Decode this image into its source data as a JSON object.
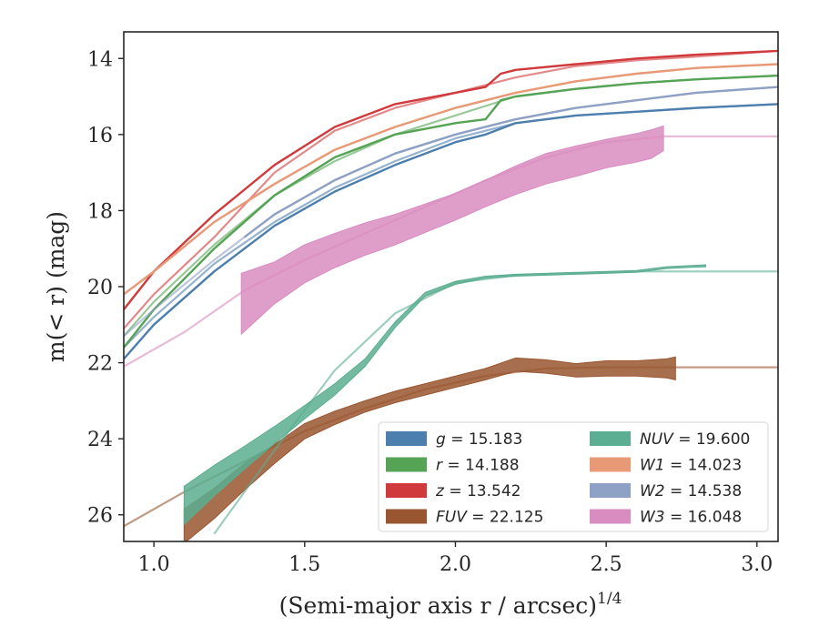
{
  "chart_data": {
    "type": "line",
    "xlabel": "(Semi-major axis r / arcsec)",
    "xlabel_exponent": "1/4",
    "ylabel": "m(< r) (mag)",
    "xlim": [
      0.9,
      3.07
    ],
    "ylim": [
      26.7,
      13.3
    ],
    "y_inverted": true,
    "x_ticks": [
      1.0,
      1.5,
      2.0,
      2.5,
      3.0
    ],
    "x_tick_labels": [
      "1.0",
      "1.5",
      "2.0",
      "2.5",
      "3.0"
    ],
    "y_ticks": [
      14,
      16,
      18,
      20,
      22,
      24,
      26
    ],
    "y_tick_labels": [
      "14",
      "16",
      "18",
      "20",
      "22",
      "24",
      "26"
    ],
    "grid": false,
    "legend_position": "lower-right",
    "series": [
      {
        "name": "g = 15.183",
        "band": "g",
        "total": "15.183",
        "color": "#4c7fad",
        "model": {
          "x": [
            0.9,
            1.0,
            1.2,
            1.4,
            1.6,
            1.8,
            2.0,
            2.2,
            2.4,
            2.6,
            2.8,
            3.07
          ],
          "y": [
            21.6,
            20.8,
            19.4,
            18.3,
            17.4,
            16.7,
            16.1,
            15.7,
            15.5,
            15.4,
            15.3,
            15.2
          ]
        },
        "data": {
          "x": [
            0.9,
            1.0,
            1.2,
            1.4,
            1.6,
            1.8,
            2.0,
            2.1,
            2.2,
            2.4,
            2.6,
            2.8,
            3.07
          ],
          "y": [
            21.9,
            21.0,
            19.6,
            18.4,
            17.5,
            16.8,
            16.2,
            16.0,
            15.7,
            15.5,
            15.4,
            15.3,
            15.2
          ],
          "width": [
            0,
            0,
            0,
            0,
            0,
            0,
            0,
            0,
            0,
            0,
            0,
            0,
            0
          ]
        }
      },
      {
        "name": "r = 14.188",
        "band": "r",
        "total": "14.188",
        "color": "#55a355",
        "model": {
          "x": [
            0.9,
            1.0,
            1.2,
            1.4,
            1.6,
            1.8,
            2.0,
            2.2,
            2.4,
            2.6,
            2.8,
            3.07
          ],
          "y": [
            21.3,
            20.4,
            18.9,
            17.6,
            16.7,
            16.0,
            15.5,
            15.0,
            14.8,
            14.65,
            14.55,
            14.45
          ]
        },
        "data": {
          "x": [
            0.9,
            1.0,
            1.2,
            1.4,
            1.6,
            1.8,
            2.0,
            2.1,
            2.15,
            2.2,
            2.4,
            2.6,
            2.8,
            3.07
          ],
          "y": [
            21.6,
            20.6,
            19.0,
            17.6,
            16.6,
            16.0,
            15.7,
            15.6,
            15.1,
            15.0,
            14.8,
            14.65,
            14.55,
            14.45
          ],
          "width": [
            0,
            0,
            0,
            0,
            0,
            0,
            0,
            0,
            0,
            0,
            0,
            0,
            0,
            0
          ]
        }
      },
      {
        "name": "z = 13.542",
        "band": "z",
        "total": "13.542",
        "color": "#d03a3c",
        "model": {
          "x": [
            0.9,
            1.0,
            1.2,
            1.4,
            1.6,
            1.8,
            2.0,
            2.2,
            2.4,
            2.6,
            2.8,
            3.07
          ],
          "y": [
            21.1,
            20.2,
            18.7,
            17.0,
            15.9,
            15.3,
            14.9,
            14.5,
            14.2,
            14.05,
            13.95,
            13.8
          ]
        },
        "data": {
          "x": [
            0.9,
            1.0,
            1.2,
            1.4,
            1.6,
            1.8,
            2.0,
            2.1,
            2.15,
            2.2,
            2.4,
            2.6,
            2.8,
            3.07
          ],
          "y": [
            20.6,
            19.6,
            18.1,
            16.8,
            15.8,
            15.2,
            14.9,
            14.75,
            14.4,
            14.3,
            14.15,
            14.0,
            13.9,
            13.8
          ],
          "width": [
            0,
            0,
            0,
            0,
            0,
            0,
            0,
            0,
            0,
            0,
            0,
            0,
            0,
            0
          ]
        }
      },
      {
        "name": "FUV = 22.125",
        "band": "FUV",
        "total": "22.125",
        "color": "#995630",
        "model": {
          "x": [
            0.9,
            1.1,
            1.3,
            1.5,
            1.7,
            1.9,
            2.1,
            2.3,
            2.5,
            2.7,
            3.07
          ],
          "y": [
            26.3,
            25.4,
            24.6,
            23.8,
            23.2,
            22.7,
            22.35,
            22.15,
            22.12,
            22.12,
            22.12
          ]
        },
        "data": {
          "x": [
            1.1,
            1.2,
            1.3,
            1.4,
            1.5,
            1.6,
            1.7,
            1.8,
            1.9,
            2.0,
            2.1,
            2.2,
            2.3,
            2.4,
            2.5,
            2.6,
            2.7,
            2.73
          ],
          "y": [
            26.3,
            25.7,
            25.0,
            24.4,
            23.8,
            23.45,
            23.15,
            22.9,
            22.7,
            22.5,
            22.3,
            22.05,
            22.1,
            22.2,
            22.15,
            22.15,
            22.15,
            22.15
          ],
          "width": [
            0.9,
            0.8,
            0.7,
            0.5,
            0.4,
            0.35,
            0.3,
            0.3,
            0.3,
            0.3,
            0.3,
            0.35,
            0.35,
            0.35,
            0.4,
            0.4,
            0.5,
            0.6
          ]
        }
      },
      {
        "name": "NUV = 19.600",
        "band": "NUV",
        "total": "19.600",
        "color": "#5bae91",
        "model": {
          "x": [
            1.2,
            1.4,
            1.6,
            1.8,
            2.0,
            2.2,
            2.4,
            2.6,
            2.8,
            3.07
          ],
          "y": [
            26.5,
            24.3,
            22.2,
            20.7,
            19.9,
            19.7,
            19.65,
            19.6,
            19.6,
            19.6
          ]
        },
        "data": {
          "x": [
            1.1,
            1.2,
            1.3,
            1.4,
            1.5,
            1.6,
            1.7,
            1.8,
            1.9,
            2.0,
            2.1,
            2.2,
            2.4,
            2.6,
            2.7,
            2.83
          ],
          "y": [
            25.75,
            25.1,
            24.5,
            23.9,
            23.3,
            22.7,
            22.0,
            21.0,
            20.2,
            19.9,
            19.75,
            19.7,
            19.65,
            19.6,
            19.5,
            19.45
          ],
          "width": [
            1.0,
            0.8,
            0.6,
            0.45,
            0.35,
            0.3,
            0.2,
            0.15,
            0.1,
            0.08,
            0.05,
            0.05,
            0.05,
            0.05,
            0.05,
            0.05
          ]
        }
      },
      {
        "name": "W1 = 14.023",
        "band": "W1",
        "total": "14.023",
        "color": "#e89a77",
        "model": {
          "x": [
            0.9,
            1.0,
            1.2,
            1.4,
            1.6,
            1.8,
            2.0,
            2.2,
            2.4,
            2.6,
            2.8,
            3.07
          ],
          "y": [
            20.2,
            19.6,
            18.3,
            17.3,
            16.4,
            15.8,
            15.3,
            14.9,
            14.6,
            14.4,
            14.25,
            14.15
          ]
        },
        "data": {
          "x": [
            0.9,
            1.0,
            1.2,
            1.4,
            1.6,
            1.8,
            2.0,
            2.2,
            2.4,
            2.6,
            2.8,
            3.07
          ],
          "y": [
            20.2,
            19.6,
            18.3,
            17.3,
            16.4,
            15.8,
            15.3,
            14.9,
            14.6,
            14.4,
            14.25,
            14.15
          ],
          "width": [
            0,
            0,
            0,
            0,
            0,
            0,
            0,
            0,
            0,
            0,
            0,
            0
          ]
        }
      },
      {
        "name": "W2 = 14.538",
        "band": "W2",
        "total": "14.538",
        "color": "#8ea0c3",
        "model": {
          "x": [
            0.9,
            1.0,
            1.2,
            1.4,
            1.6,
            1.8,
            2.0,
            2.2,
            2.4,
            2.6,
            2.8,
            3.07
          ],
          "y": [
            21.3,
            20.6,
            19.3,
            18.1,
            17.2,
            16.5,
            16.0,
            15.6,
            15.3,
            15.1,
            14.9,
            14.75
          ]
        },
        "data": {
          "x": [
            1.3,
            1.4,
            1.6,
            1.8,
            2.0,
            2.2,
            2.4,
            2.6,
            2.8,
            3.07
          ],
          "y": [
            18.7,
            18.1,
            17.2,
            16.5,
            16.0,
            15.6,
            15.3,
            15.1,
            14.9,
            14.75
          ],
          "width": [
            0,
            0,
            0,
            0,
            0,
            0,
            0,
            0,
            0,
            0
          ]
        }
      },
      {
        "name": "W3 = 16.048",
        "band": "W3",
        "total": "16.048",
        "color": "#d98cc0",
        "model": {
          "x": [
            0.9,
            1.1,
            1.3,
            1.5,
            1.7,
            1.9,
            2.1,
            2.3,
            2.5,
            2.7,
            2.9,
            3.07
          ],
          "y": [
            22.1,
            21.2,
            20.1,
            19.3,
            18.6,
            17.9,
            17.2,
            16.6,
            16.2,
            16.05,
            16.05,
            16.05
          ]
        },
        "data": {
          "x": [
            1.29,
            1.4,
            1.5,
            1.6,
            1.7,
            1.8,
            1.9,
            2.0,
            2.1,
            2.2,
            2.3,
            2.4,
            2.5,
            2.6,
            2.65,
            2.69
          ],
          "y": [
            20.45,
            19.9,
            19.4,
            19.05,
            18.75,
            18.5,
            18.2,
            17.9,
            17.55,
            17.2,
            16.9,
            16.7,
            16.5,
            16.35,
            16.25,
            16.1
          ],
          "width": [
            1.6,
            1.1,
            1.0,
            0.9,
            0.85,
            0.8,
            0.75,
            0.7,
            0.7,
            0.75,
            0.8,
            0.8,
            0.75,
            0.75,
            0.75,
            0.65
          ]
        }
      }
    ],
    "legend_entries": [
      {
        "label": "g = 15.183",
        "band": "g",
        "value": "15.183",
        "color": "#4c7fad"
      },
      {
        "label": "r = 14.188",
        "band": "r",
        "value": "14.188",
        "color": "#55a355"
      },
      {
        "label": "z = 13.542",
        "band": "z",
        "value": "13.542",
        "color": "#d03a3c"
      },
      {
        "label": "FUV = 22.125",
        "band": "FUV",
        "value": "22.125",
        "color": "#995630"
      },
      {
        "label": "NUV = 19.600",
        "band": "NUV",
        "value": "19.600",
        "color": "#5bae91"
      },
      {
        "label": "W1 = 14.023",
        "band": "W1",
        "value": "14.023",
        "color": "#e89a77"
      },
      {
        "label": "W2 = 14.538",
        "band": "W2",
        "value": "14.538",
        "color": "#8ea0c3"
      },
      {
        "label": "W3 = 16.048",
        "band": "W3",
        "value": "16.048",
        "color": "#d98cc0"
      }
    ]
  }
}
